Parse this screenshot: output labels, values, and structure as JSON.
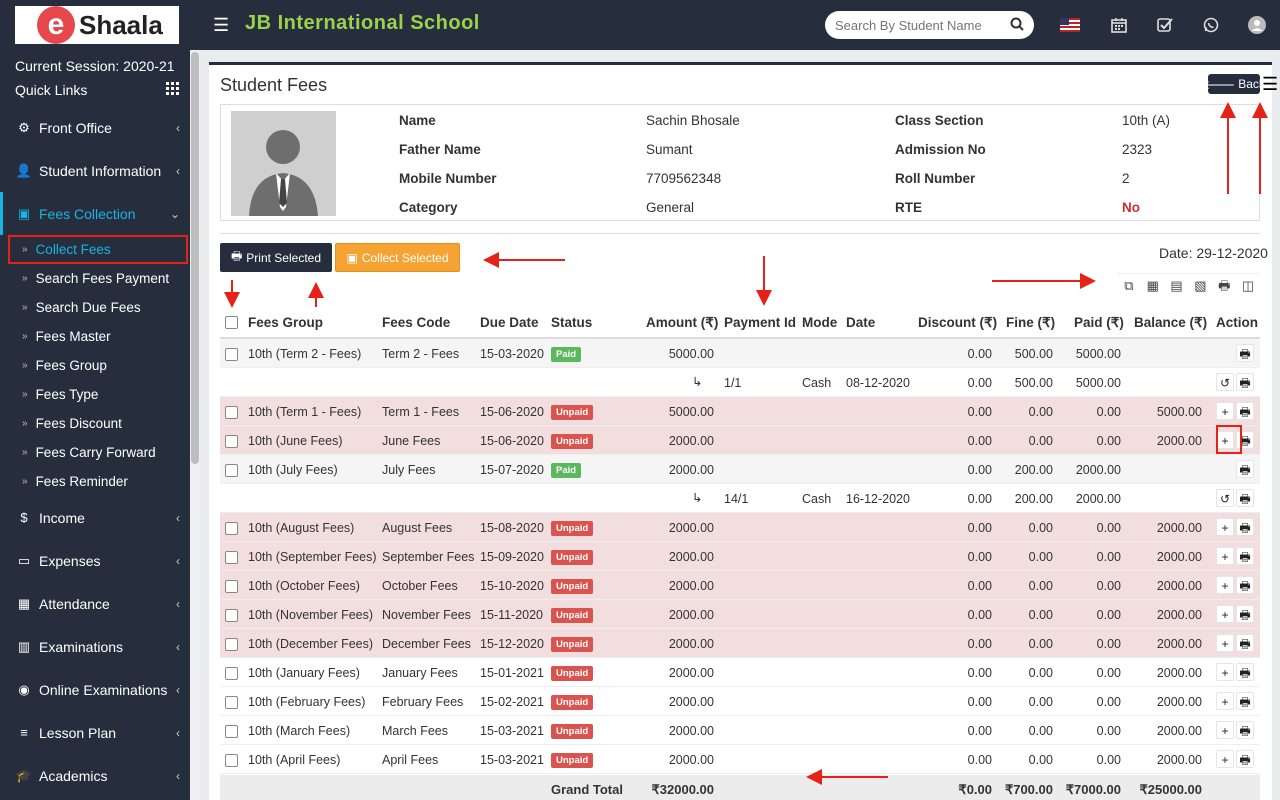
{
  "header": {
    "logo_e": "e",
    "logo_rest": "Shaala",
    "school_name": "JB International School",
    "search_placeholder": "Search By Student Name",
    "icons": [
      "us-flag-icon",
      "calendar-icon",
      "check-square-icon",
      "whatsapp-icon",
      "user-avatar-icon"
    ]
  },
  "sidebar": {
    "session": "Current Session: 2020-21",
    "quick_links": "Quick Links",
    "items": [
      {
        "label": "Front Office",
        "icon": "front-office-icon"
      },
      {
        "label": "Student Information",
        "icon": "user-plus-icon"
      },
      {
        "label": "Fees Collection",
        "icon": "money-icon"
      },
      {
        "label": "Income",
        "icon": "dollar-icon"
      },
      {
        "label": "Expenses",
        "icon": "credit-card-icon"
      },
      {
        "label": "Attendance",
        "icon": "calendar-check-icon"
      },
      {
        "label": "Examinations",
        "icon": "map-icon"
      },
      {
        "label": "Online Examinations",
        "icon": "rss-icon"
      },
      {
        "label": "Lesson Plan",
        "icon": "list-icon"
      },
      {
        "label": "Academics",
        "icon": "graduation-cap-icon"
      }
    ],
    "subitems": [
      "Collect Fees",
      "Search Fees Payment",
      "Search Due Fees",
      "Fees Master",
      "Fees Group",
      "Fees Type",
      "Fees Discount",
      "Fees Carry Forward",
      "Fees Reminder"
    ]
  },
  "page": {
    "title": "Student Fees",
    "back_label": "Back",
    "print_selected": "Print Selected",
    "collect_selected": "Collect Selected",
    "date": "Date: 29-12-2020"
  },
  "profile": {
    "name_label": "Name",
    "name": "Sachin Bhosale",
    "father_label": "Father Name",
    "father": "Sumant",
    "mobile_label": "Mobile Number",
    "mobile": "7709562348",
    "category_label": "Category",
    "category": "General",
    "class_label": "Class Section",
    "class": "10th (A)",
    "admission_label": "Admission No",
    "admission": "2323",
    "roll_label": "Roll Number",
    "roll": "2",
    "rte_label": "RTE",
    "rte": "No"
  },
  "table": {
    "headers": {
      "fees_group": "Fees Group",
      "fees_code": "Fees Code",
      "due_date": "Due Date",
      "status": "Status",
      "amount": "Amount (₹)",
      "payment_id": "Payment Id",
      "mode": "Mode",
      "date": "Date",
      "discount": "Discount (₹)",
      "fine": "Fine (₹)",
      "paid": "Paid (₹)",
      "balance": "Balance (₹)",
      "action": "Action"
    },
    "rows": [
      {
        "type": "paid",
        "group": "10th (Term 2 - Fees)",
        "code": "Term 2 - Fees",
        "due": "15-03-2020",
        "status": "Paid",
        "amount": "5000.00",
        "discount": "0.00",
        "fine": "500.00",
        "paid": "5000.00",
        "balance": ""
      },
      {
        "type": "sub",
        "pid": "1/1",
        "mode": "Cash",
        "date": "08-12-2020",
        "discount": "0.00",
        "fine": "500.00",
        "paid": "5000.00"
      },
      {
        "type": "unpaid",
        "group": "10th (Term 1 - Fees)",
        "code": "Term 1 - Fees",
        "due": "15-06-2020",
        "status": "Unpaid",
        "amount": "5000.00",
        "discount": "0.00",
        "fine": "0.00",
        "paid": "0.00",
        "balance": "5000.00"
      },
      {
        "type": "unpaid",
        "group": "10th (June Fees)",
        "code": "June Fees",
        "due": "15-06-2020",
        "status": "Unpaid",
        "amount": "2000.00",
        "discount": "0.00",
        "fine": "0.00",
        "paid": "0.00",
        "balance": "2000.00"
      },
      {
        "type": "paid",
        "group": "10th (July Fees)",
        "code": "July Fees",
        "due": "15-07-2020",
        "status": "Paid",
        "amount": "2000.00",
        "discount": "0.00",
        "fine": "200.00",
        "paid": "2000.00",
        "balance": ""
      },
      {
        "type": "sub",
        "pid": "14/1",
        "mode": "Cash",
        "date": "16-12-2020",
        "discount": "0.00",
        "fine": "200.00",
        "paid": "2000.00"
      },
      {
        "type": "unpaid",
        "group": "10th (August Fees)",
        "code": "August Fees",
        "due": "15-08-2020",
        "status": "Unpaid",
        "amount": "2000.00",
        "discount": "0.00",
        "fine": "0.00",
        "paid": "0.00",
        "balance": "2000.00"
      },
      {
        "type": "unpaid",
        "group": "10th (September Fees)",
        "code": "September Fees",
        "due": "15-09-2020",
        "status": "Unpaid",
        "amount": "2000.00",
        "discount": "0.00",
        "fine": "0.00",
        "paid": "0.00",
        "balance": "2000.00"
      },
      {
        "type": "unpaid",
        "group": "10th (October Fees)",
        "code": "October Fees",
        "due": "15-10-2020",
        "status": "Unpaid",
        "amount": "2000.00",
        "discount": "0.00",
        "fine": "0.00",
        "paid": "0.00",
        "balance": "2000.00"
      },
      {
        "type": "unpaid",
        "group": "10th (November Fees)",
        "code": "November Fees",
        "due": "15-11-2020",
        "status": "Unpaid",
        "amount": "2000.00",
        "discount": "0.00",
        "fine": "0.00",
        "paid": "0.00",
        "balance": "2000.00"
      },
      {
        "type": "unpaid",
        "group": "10th (December Fees)",
        "code": "December Fees",
        "due": "15-12-2020",
        "status": "Unpaid",
        "amount": "2000.00",
        "discount": "0.00",
        "fine": "0.00",
        "paid": "0.00",
        "balance": "2000.00"
      },
      {
        "type": "unpaid-plain",
        "group": "10th (January Fees)",
        "code": "January Fees",
        "due": "15-01-2021",
        "status": "Unpaid",
        "amount": "2000.00",
        "discount": "0.00",
        "fine": "0.00",
        "paid": "0.00",
        "balance": "2000.00"
      },
      {
        "type": "unpaid-plain",
        "group": "10th (February Fees)",
        "code": "February Fees",
        "due": "15-02-2021",
        "status": "Unpaid",
        "amount": "2000.00",
        "discount": "0.00",
        "fine": "0.00",
        "paid": "0.00",
        "balance": "2000.00"
      },
      {
        "type": "unpaid-plain",
        "group": "10th (March Fees)",
        "code": "March Fees",
        "due": "15-03-2021",
        "status": "Unpaid",
        "amount": "2000.00",
        "discount": "0.00",
        "fine": "0.00",
        "paid": "0.00",
        "balance": "2000.00"
      },
      {
        "type": "unpaid-plain",
        "group": "10th (April Fees)",
        "code": "April Fees",
        "due": "15-03-2021",
        "status": "Unpaid",
        "amount": "2000.00",
        "discount": "0.00",
        "fine": "0.00",
        "paid": "0.00",
        "balance": "2000.00"
      }
    ],
    "totals": {
      "label": "Grand Total",
      "amount": "₹32000.00",
      "discount": "₹0.00",
      "fine": "₹700.00",
      "paid": "₹7000.00",
      "balance": "₹25000.00"
    }
  },
  "colors": {
    "sidebar": "#262d3d",
    "accent": "#18b4e6",
    "school_name": "#9bd14d",
    "unpaid_row": "#f2dede",
    "annotation": "#e62117"
  }
}
